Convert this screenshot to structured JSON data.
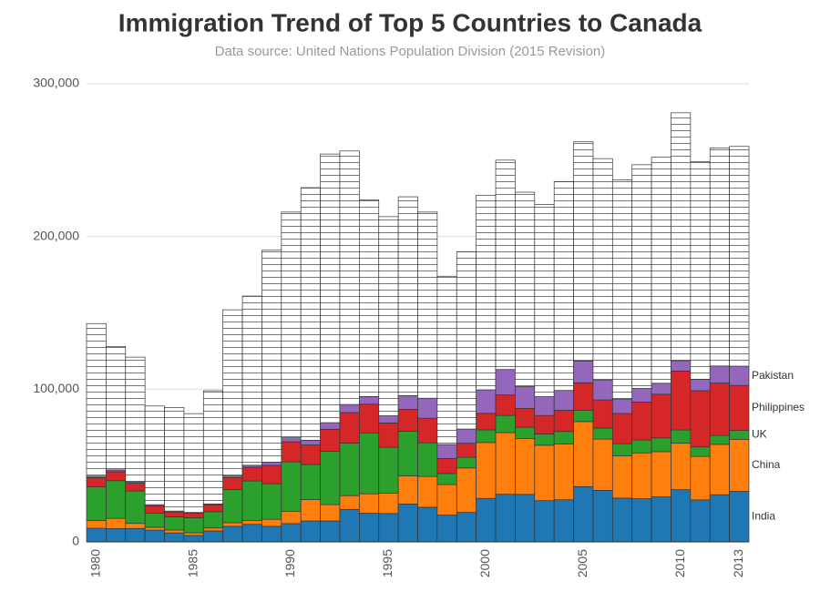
{
  "chart_data": {
    "type": "stacked_bar",
    "title": "Immigration Trend of Top 5 Countries to Canada",
    "subtitle": "Data source: United Nations Population Division (2015 Revision)",
    "categories": [
      "1980",
      null,
      null,
      null,
      null,
      "1985",
      null,
      null,
      null,
      null,
      "1990",
      null,
      null,
      null,
      null,
      "1995",
      null,
      null,
      null,
      null,
      "2000",
      null,
      null,
      null,
      null,
      "2005",
      null,
      null,
      null,
      null,
      "2010",
      null,
      null,
      "2013"
    ],
    "series": [
      {
        "name": "India",
        "color": "#1f77b4",
        "values": [
          8900,
          8700,
          8800,
          7700,
          5900,
          4200,
          7200,
          10200,
          11500,
          10200,
          12000,
          13700,
          13700,
          21300,
          18800,
          18600,
          24800,
          22700,
          17600,
          19300,
          28500,
          31200,
          31100,
          27000,
          27600,
          36200,
          33800,
          28700,
          28300,
          29500,
          34200,
          27500,
          30900,
          33100
        ]
      },
      {
        "name": "China",
        "color": "#ff7f0e",
        "values": [
          5100,
          6700,
          3300,
          1900,
          1900,
          1800,
          1900,
          2400,
          2600,
          4600,
          8100,
          14000,
          10700,
          9000,
          12700,
          13400,
          18500,
          20200,
          20000,
          29100,
          36600,
          40400,
          36500,
          36300,
          36600,
          42600,
          33500,
          27600,
          30000,
          29600,
          30400,
          28500,
          33000,
          34100
        ]
      },
      {
        "name": "UK",
        "color": "#2ca02c",
        "values": [
          22000,
          24700,
          21300,
          9100,
          8600,
          9900,
          10700,
          21600,
          25800,
          23300,
          32400,
          23000,
          35000,
          34400,
          39900,
          30000,
          29200,
          22000,
          7200,
          7000,
          8300,
          11200,
          7500,
          7400,
          8100,
          7300,
          7300,
          8000,
          8400,
          9000,
          8700,
          6200,
          5800,
          5800
        ]
      },
      {
        "name": "Philippines",
        "color": "#d62728",
        "values": [
          6100,
          5900,
          5000,
          4900,
          3200,
          2900,
          4500,
          8000,
          9000,
          12000,
          13100,
          12800,
          14400,
          20000,
          18800,
          15900,
          14300,
          16100,
          9900,
          9200,
          10800,
          13400,
          12400,
          12100,
          13900,
          18100,
          18400,
          19800,
          24900,
          28600,
          38600,
          36800,
          34300,
          29500
        ]
      },
      {
        "name": "Pakistan",
        "color": "#9467bd",
        "values": [
          1000,
          1200,
          1000,
          800,
          600,
          500,
          600,
          1000,
          1300,
          2000,
          2600,
          3100,
          4300,
          5300,
          5000,
          4700,
          9000,
          13100,
          9100,
          9300,
          15400,
          16700,
          14200,
          12300,
          13000,
          14300,
          13100,
          9500,
          8900,
          7200,
          6800,
          7500,
          11200,
          12600
        ]
      },
      {
        "color": "#ffffff",
        "values": [
          99900,
          80800,
          81600,
          64600,
          67800,
          64700,
          74100,
          108800,
          110800,
          138900,
          147800,
          165400,
          175900,
          166000,
          128800,
          130400,
          130200,
          121900,
          110200,
          116100,
          127400,
          137100,
          127300,
          125900,
          136800,
          143500,
          144900,
          143400,
          146500,
          148100,
          162300,
          142500,
          142800,
          143900
        ]
      }
    ],
    "ylim": [
      0,
      300000
    ],
    "yticks": [
      0,
      {
        "value": 100000,
        "label": "100,000"
      },
      {
        "value": 200000,
        "label": "200,000"
      },
      {
        "value": 300000,
        "label": "300,000"
      }
    ],
    "grid": true
  }
}
